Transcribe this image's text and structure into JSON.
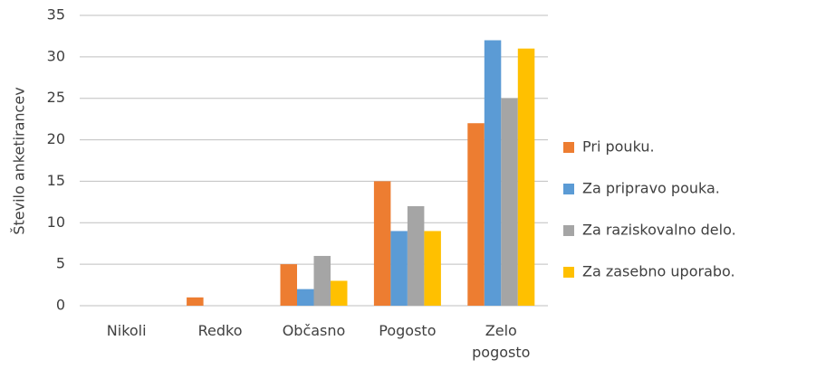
{
  "chart_data": {
    "type": "bar",
    "y_label": "Število anketirancev",
    "categories": [
      "Nikoli",
      "Redko",
      "Občasno",
      "Pogosto",
      "Zelo pogosto"
    ],
    "series": [
      {
        "name": "Pri pouku.",
        "color": "#ed7d31",
        "values": [
          0,
          1,
          5,
          15,
          22
        ]
      },
      {
        "name": "Za pripravo pouka.",
        "color": "#5b9bd5",
        "values": [
          0,
          0,
          2,
          9,
          32
        ]
      },
      {
        "name": "Za raziskovalno delo.",
        "color": "#a5a5a5",
        "values": [
          0,
          0,
          6,
          12,
          25
        ]
      },
      {
        "name": "Za zasebno uporabo.",
        "color": "#ffc000",
        "values": [
          0,
          0,
          3,
          9,
          31
        ]
      }
    ],
    "ylim": [
      0,
      35
    ],
    "yticks": [
      0,
      5,
      10,
      15,
      20,
      25,
      30,
      35
    ],
    "grid": true,
    "legend": "right"
  }
}
